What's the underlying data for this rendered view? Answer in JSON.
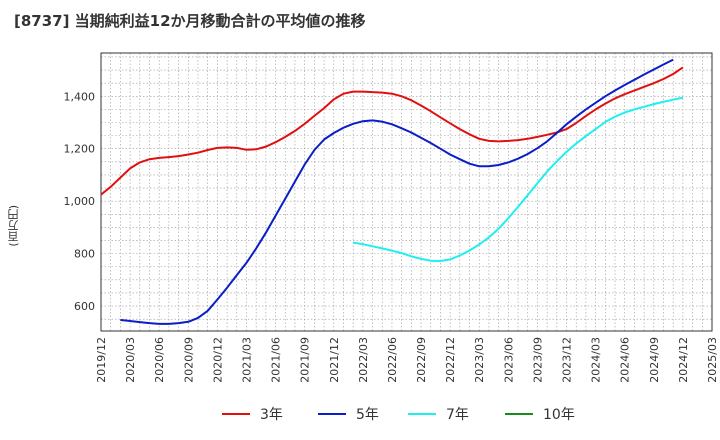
{
  "chart_data": {
    "type": "line",
    "title": "[8737]  当期純利益12か月移動合計の平均値の推移",
    "ylabel": "(百万円)",
    "xlabel": "",
    "x_ticks": [
      "2019/12",
      "2020/03",
      "2020/06",
      "2020/09",
      "2020/12",
      "2021/03",
      "2021/06",
      "2021/09",
      "2021/12",
      "2022/03",
      "2022/06",
      "2022/09",
      "2022/12",
      "2023/03",
      "2023/06",
      "2023/09",
      "2023/12",
      "2024/03",
      "2024/06",
      "2024/09",
      "2024/12",
      "2025/03"
    ],
    "y_ticks": [
      600,
      800,
      1000,
      1200,
      1400
    ],
    "ylim": [
      505,
      1565
    ],
    "grid": true,
    "legend_position": "bottom",
    "series": [
      {
        "name": "3年",
        "color": "#e01010",
        "points": [
          [
            "2019/12",
            1025
          ],
          [
            "2020/01",
            1055
          ],
          [
            "2020/02",
            1090
          ],
          [
            "2020/03",
            1125
          ],
          [
            "2020/04",
            1148
          ],
          [
            "2020/05",
            1160
          ],
          [
            "2020/06",
            1165
          ],
          [
            "2020/07",
            1168
          ],
          [
            "2020/08",
            1172
          ],
          [
            "2020/09",
            1178
          ],
          [
            "2020/10",
            1185
          ],
          [
            "2020/11",
            1195
          ],
          [
            "2020/12",
            1203
          ],
          [
            "2021/01",
            1205
          ],
          [
            "2021/02",
            1203
          ],
          [
            "2021/03",
            1196
          ],
          [
            "2021/04",
            1198
          ],
          [
            "2021/05",
            1208
          ],
          [
            "2021/06",
            1225
          ],
          [
            "2021/07",
            1245
          ],
          [
            "2021/08",
            1268
          ],
          [
            "2021/09",
            1295
          ],
          [
            "2021/10",
            1325
          ],
          [
            "2021/11",
            1355
          ],
          [
            "2021/12",
            1388
          ],
          [
            "2022/01",
            1410
          ],
          [
            "2022/02",
            1418
          ],
          [
            "2022/03",
            1418
          ],
          [
            "2022/04",
            1416
          ],
          [
            "2022/05",
            1414
          ],
          [
            "2022/06",
            1410
          ],
          [
            "2022/07",
            1400
          ],
          [
            "2022/08",
            1385
          ],
          [
            "2022/09",
            1365
          ],
          [
            "2022/10",
            1343
          ],
          [
            "2022/11",
            1320
          ],
          [
            "2022/12",
            1297
          ],
          [
            "2023/01",
            1275
          ],
          [
            "2023/02",
            1255
          ],
          [
            "2023/03",
            1238
          ],
          [
            "2023/04",
            1230
          ],
          [
            "2023/05",
            1228
          ],
          [
            "2023/06",
            1230
          ],
          [
            "2023/07",
            1233
          ],
          [
            "2023/08",
            1238
          ],
          [
            "2023/09",
            1245
          ],
          [
            "2023/10",
            1253
          ],
          [
            "2023/11",
            1262
          ],
          [
            "2023/12",
            1275
          ],
          [
            "2024/01",
            1298
          ],
          [
            "2024/02",
            1325
          ],
          [
            "2024/03",
            1350
          ],
          [
            "2024/04",
            1372
          ],
          [
            "2024/05",
            1392
          ],
          [
            "2024/06",
            1408
          ],
          [
            "2024/07",
            1422
          ],
          [
            "2024/08",
            1436
          ],
          [
            "2024/09",
            1450
          ],
          [
            "2024/10",
            1466
          ],
          [
            "2024/11",
            1485
          ],
          [
            "2024/12",
            1510
          ]
        ]
      },
      {
        "name": "5年",
        "color": "#0a1ec8",
        "points": [
          [
            "2020/02",
            547
          ],
          [
            "2020/03",
            543
          ],
          [
            "2020/04",
            539
          ],
          [
            "2020/05",
            535
          ],
          [
            "2020/06",
            532
          ],
          [
            "2020/07",
            532
          ],
          [
            "2020/08",
            535
          ],
          [
            "2020/09",
            540
          ],
          [
            "2020/10",
            555
          ],
          [
            "2020/11",
            582
          ],
          [
            "2020/12",
            625
          ],
          [
            "2021/01",
            670
          ],
          [
            "2021/02",
            718
          ],
          [
            "2021/03",
            765
          ],
          [
            "2021/04",
            820
          ],
          [
            "2021/05",
            880
          ],
          [
            "2021/06",
            945
          ],
          [
            "2021/07",
            1010
          ],
          [
            "2021/08",
            1075
          ],
          [
            "2021/09",
            1140
          ],
          [
            "2021/10",
            1195
          ],
          [
            "2021/11",
            1235
          ],
          [
            "2021/12",
            1260
          ],
          [
            "2022/01",
            1280
          ],
          [
            "2022/02",
            1295
          ],
          [
            "2022/03",
            1305
          ],
          [
            "2022/04",
            1308
          ],
          [
            "2022/05",
            1303
          ],
          [
            "2022/06",
            1293
          ],
          [
            "2022/07",
            1278
          ],
          [
            "2022/08",
            1262
          ],
          [
            "2022/09",
            1242
          ],
          [
            "2022/10",
            1222
          ],
          [
            "2022/11",
            1200
          ],
          [
            "2022/12",
            1178
          ],
          [
            "2023/01",
            1160
          ],
          [
            "2023/02",
            1143
          ],
          [
            "2023/03",
            1133
          ],
          [
            "2023/04",
            1133
          ],
          [
            "2023/05",
            1138
          ],
          [
            "2023/06",
            1148
          ],
          [
            "2023/07",
            1162
          ],
          [
            "2023/08",
            1180
          ],
          [
            "2023/09",
            1202
          ],
          [
            "2023/10",
            1228
          ],
          [
            "2023/11",
            1260
          ],
          [
            "2023/12",
            1293
          ],
          [
            "2024/01",
            1322
          ],
          [
            "2024/02",
            1350
          ],
          [
            "2024/03",
            1375
          ],
          [
            "2024/04",
            1400
          ],
          [
            "2024/05",
            1422
          ],
          [
            "2024/06",
            1443
          ],
          [
            "2024/07",
            1463
          ],
          [
            "2024/08",
            1483
          ],
          [
            "2024/09",
            1502
          ],
          [
            "2024/10",
            1521
          ],
          [
            "2024/11",
            1540
          ]
        ]
      },
      {
        "name": "7年",
        "color": "#1ef0f0",
        "points": [
          [
            "2022/02",
            842
          ],
          [
            "2022/03",
            836
          ],
          [
            "2022/04",
            828
          ],
          [
            "2022/05",
            820
          ],
          [
            "2022/06",
            811
          ],
          [
            "2022/07",
            802
          ],
          [
            "2022/08",
            790
          ],
          [
            "2022/09",
            780
          ],
          [
            "2022/10",
            773
          ],
          [
            "2022/11",
            772
          ],
          [
            "2022/12",
            778
          ],
          [
            "2023/01",
            793
          ],
          [
            "2023/02",
            812
          ],
          [
            "2023/03",
            835
          ],
          [
            "2023/04",
            862
          ],
          [
            "2023/05",
            895
          ],
          [
            "2023/06",
            935
          ],
          [
            "2023/07",
            978
          ],
          [
            "2023/08",
            1023
          ],
          [
            "2023/09",
            1068
          ],
          [
            "2023/10",
            1113
          ],
          [
            "2023/11",
            1152
          ],
          [
            "2023/12",
            1188
          ],
          [
            "2024/01",
            1220
          ],
          [
            "2024/02",
            1248
          ],
          [
            "2024/03",
            1275
          ],
          [
            "2024/04",
            1302
          ],
          [
            "2024/05",
            1322
          ],
          [
            "2024/06",
            1338
          ],
          [
            "2024/07",
            1350
          ],
          [
            "2024/08",
            1360
          ],
          [
            "2024/09",
            1370
          ],
          [
            "2024/10",
            1379
          ],
          [
            "2024/11",
            1387
          ],
          [
            "2024/12",
            1395
          ]
        ]
      },
      {
        "name": "10年",
        "color": "#1a8a1a",
        "points": []
      }
    ]
  }
}
